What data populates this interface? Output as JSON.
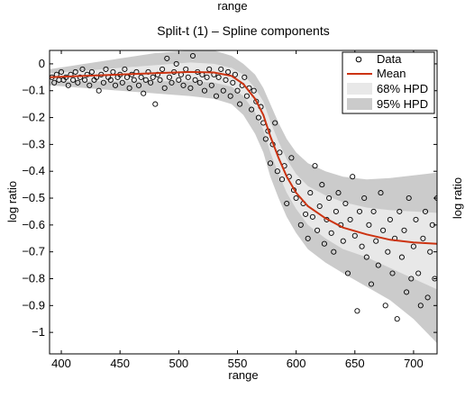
{
  "figure": {
    "top_label": "range"
  },
  "chart_data": {
    "type": "scatter",
    "title": "Split-t (1) – Spline components",
    "xlabel": "range",
    "ylabel": "log ratio",
    "xlim": [
      390,
      720
    ],
    "ylim": [
      -1.08,
      0.05
    ],
    "xticks": [
      400,
      450,
      500,
      550,
      600,
      650,
      700
    ],
    "yticks": [
      0,
      -0.1,
      -0.2,
      -0.3,
      -0.4,
      -0.5,
      -0.6,
      -0.7,
      -0.8,
      -0.9,
      -1
    ],
    "ytick_labels": [
      "0",
      "−0.1",
      "−0.2",
      "−0.3",
      "−0.4",
      "−0.5",
      "−0.6",
      "−0.7",
      "−0.8",
      "−0.9",
      "−1"
    ],
    "legend": {
      "placement": "top-right",
      "entries": [
        "Data",
        "Mean",
        "68% HPD",
        "95% HPD"
      ]
    },
    "colors": {
      "mean": "#cc3311",
      "hpd68": "#e8e8e8",
      "hpd95": "#cbcbcb",
      "points": "#000000"
    },
    "mean_curve": {
      "x": [
        390,
        420,
        450,
        480,
        510,
        530,
        545,
        555,
        565,
        572,
        578,
        585,
        592,
        600,
        610,
        625,
        640,
        660,
        680,
        700,
        720
      ],
      "y": [
        -0.05,
        -0.045,
        -0.04,
        -0.035,
        -0.03,
        -0.032,
        -0.045,
        -0.075,
        -0.13,
        -0.19,
        -0.27,
        -0.35,
        -0.42,
        -0.48,
        -0.53,
        -0.575,
        -0.61,
        -0.635,
        -0.655,
        -0.665,
        -0.67
      ]
    },
    "hpd95": {
      "x": [
        390,
        420,
        450,
        480,
        510,
        530,
        545,
        555,
        565,
        572,
        578,
        585,
        592,
        600,
        610,
        625,
        640,
        660,
        680,
        700,
        720
      ],
      "upper": [
        -0.02,
        0.0,
        0.02,
        0.04,
        0.05,
        0.05,
        0.03,
        0.0,
        -0.04,
        -0.09,
        -0.15,
        -0.22,
        -0.28,
        -0.33,
        -0.37,
        -0.4,
        -0.42,
        -0.43,
        -0.425,
        -0.415,
        -0.405
      ],
      "lower": [
        -0.08,
        -0.09,
        -0.1,
        -0.11,
        -0.12,
        -0.13,
        -0.15,
        -0.19,
        -0.26,
        -0.33,
        -0.42,
        -0.5,
        -0.57,
        -0.63,
        -0.69,
        -0.74,
        -0.78,
        -0.83,
        -0.88,
        -0.95,
        -1.04
      ]
    },
    "hpd68": {
      "x": [
        390,
        420,
        450,
        480,
        510,
        530,
        545,
        555,
        565,
        572,
        578,
        585,
        592,
        600,
        610,
        625,
        640,
        660,
        680,
        700,
        720
      ],
      "upper": [
        -0.035,
        -0.025,
        -0.015,
        -0.005,
        0.005,
        0.0,
        -0.015,
        -0.04,
        -0.09,
        -0.14,
        -0.215,
        -0.29,
        -0.355,
        -0.41,
        -0.455,
        -0.49,
        -0.515,
        -0.535,
        -0.545,
        -0.55,
        -0.555
      ],
      "lower": [
        -0.065,
        -0.065,
        -0.065,
        -0.065,
        -0.065,
        -0.07,
        -0.085,
        -0.12,
        -0.18,
        -0.245,
        -0.33,
        -0.41,
        -0.48,
        -0.54,
        -0.6,
        -0.65,
        -0.69,
        -0.72,
        -0.76,
        -0.8,
        -0.84
      ]
    },
    "points": [
      [
        392,
        -0.05
      ],
      [
        394,
        -0.07
      ],
      [
        396,
        -0.04
      ],
      [
        398,
        -0.06
      ],
      [
        400,
        -0.03
      ],
      [
        402,
        -0.06
      ],
      [
        404,
        -0.05
      ],
      [
        406,
        -0.08
      ],
      [
        408,
        -0.04
      ],
      [
        410,
        -0.06
      ],
      [
        412,
        -0.03
      ],
      [
        414,
        -0.07
      ],
      [
        416,
        -0.05
      ],
      [
        418,
        -0.02
      ],
      [
        420,
        -0.06
      ],
      [
        422,
        -0.04
      ],
      [
        424,
        -0.08
      ],
      [
        426,
        -0.03
      ],
      [
        428,
        -0.06
      ],
      [
        430,
        -0.05
      ],
      [
        432,
        -0.1
      ],
      [
        434,
        -0.04
      ],
      [
        436,
        -0.07
      ],
      [
        438,
        -0.02
      ],
      [
        440,
        -0.05
      ],
      [
        442,
        -0.06
      ],
      [
        444,
        -0.03
      ],
      [
        446,
        -0.08
      ],
      [
        448,
        -0.05
      ],
      [
        450,
        -0.04
      ],
      [
        452,
        -0.07
      ],
      [
        454,
        -0.02
      ],
      [
        456,
        -0.05
      ],
      [
        458,
        -0.09
      ],
      [
        460,
        -0.04
      ],
      [
        462,
        -0.06
      ],
      [
        464,
        -0.03
      ],
      [
        466,
        -0.08
      ],
      [
        468,
        -0.05
      ],
      [
        470,
        -0.11
      ],
      [
        472,
        -0.06
      ],
      [
        474,
        -0.03
      ],
      [
        476,
        -0.07
      ],
      [
        478,
        -0.05
      ],
      [
        480,
        -0.15
      ],
      [
        482,
        -0.04
      ],
      [
        484,
        -0.06
      ],
      [
        486,
        -0.02
      ],
      [
        488,
        -0.09
      ],
      [
        490,
        0.02
      ],
      [
        492,
        -0.05
      ],
      [
        494,
        -0.07
      ],
      [
        496,
        -0.03
      ],
      [
        498,
        0.0
      ],
      [
        500,
        -0.06
      ],
      [
        502,
        -0.04
      ],
      [
        504,
        -0.08
      ],
      [
        506,
        -0.02
      ],
      [
        508,
        -0.05
      ],
      [
        510,
        -0.09
      ],
      [
        512,
        0.03
      ],
      [
        514,
        -0.06
      ],
      [
        516,
        -0.03
      ],
      [
        518,
        -0.07
      ],
      [
        520,
        -0.04
      ],
      [
        522,
        -0.1
      ],
      [
        524,
        -0.05
      ],
      [
        526,
        -0.02
      ],
      [
        528,
        -0.08
      ],
      [
        530,
        -0.04
      ],
      [
        532,
        -0.12
      ],
      [
        534,
        -0.05
      ],
      [
        536,
        -0.02
      ],
      [
        538,
        -0.1
      ],
      [
        540,
        -0.06
      ],
      [
        542,
        -0.03
      ],
      [
        544,
        -0.12
      ],
      [
        546,
        -0.07
      ],
      [
        548,
        -0.04
      ],
      [
        550,
        -0.1
      ],
      [
        552,
        -0.15
      ],
      [
        554,
        -0.08
      ],
      [
        556,
        -0.05
      ],
      [
        558,
        -0.12
      ],
      [
        560,
        -0.09
      ],
      [
        562,
        -0.17
      ],
      [
        564,
        -0.1
      ],
      [
        566,
        -0.14
      ],
      [
        568,
        -0.2
      ],
      [
        570,
        -0.16
      ],
      [
        572,
        -0.22
      ],
      [
        574,
        -0.28
      ],
      [
        576,
        -0.25
      ],
      [
        578,
        -0.37
      ],
      [
        580,
        -0.3
      ],
      [
        582,
        -0.22
      ],
      [
        584,
        -0.4
      ],
      [
        586,
        -0.33
      ],
      [
        588,
        -0.43
      ],
      [
        590,
        -0.38
      ],
      [
        592,
        -0.52
      ],
      [
        594,
        -0.42
      ],
      [
        596,
        -0.35
      ],
      [
        598,
        -0.47
      ],
      [
        600,
        -0.5
      ],
      [
        602,
        -0.44
      ],
      [
        604,
        -0.6
      ],
      [
        606,
        -0.52
      ],
      [
        608,
        -0.56
      ],
      [
        610,
        -0.65
      ],
      [
        612,
        -0.48
      ],
      [
        614,
        -0.57
      ],
      [
        616,
        -0.38
      ],
      [
        618,
        -0.62
      ],
      [
        620,
        -0.53
      ],
      [
        622,
        -0.45
      ],
      [
        624,
        -0.67
      ],
      [
        626,
        -0.58
      ],
      [
        628,
        -0.5
      ],
      [
        630,
        -0.63
      ],
      [
        632,
        -0.7
      ],
      [
        634,
        -0.55
      ],
      [
        636,
        -0.48
      ],
      [
        638,
        -0.6
      ],
      [
        640,
        -0.66
      ],
      [
        642,
        -0.52
      ],
      [
        644,
        -0.78
      ],
      [
        646,
        -0.58
      ],
      [
        648,
        -0.42
      ],
      [
        650,
        -0.64
      ],
      [
        652,
        -0.92
      ],
      [
        654,
        -0.55
      ],
      [
        656,
        -0.68
      ],
      [
        658,
        -0.5
      ],
      [
        660,
        -0.72
      ],
      [
        662,
        -0.6
      ],
      [
        664,
        -0.82
      ],
      [
        666,
        -0.55
      ],
      [
        668,
        -0.66
      ],
      [
        670,
        -0.75
      ],
      [
        672,
        -0.48
      ],
      [
        674,
        -0.62
      ],
      [
        676,
        -0.9
      ],
      [
        678,
        -0.7
      ],
      [
        680,
        -0.58
      ],
      [
        682,
        -0.78
      ],
      [
        684,
        -0.65
      ],
      [
        686,
        -0.95
      ],
      [
        688,
        -0.55
      ],
      [
        690,
        -0.72
      ],
      [
        692,
        -0.62
      ],
      [
        694,
        -0.85
      ],
      [
        696,
        -0.5
      ],
      [
        698,
        -0.8
      ],
      [
        700,
        -0.68
      ],
      [
        702,
        -0.58
      ],
      [
        704,
        -0.78
      ],
      [
        706,
        -0.9
      ],
      [
        708,
        -0.65
      ],
      [
        710,
        -0.55
      ],
      [
        712,
        -0.87
      ],
      [
        714,
        -0.7
      ],
      [
        716,
        -0.6
      ],
      [
        718,
        -0.8
      ],
      [
        720,
        -0.5
      ]
    ]
  }
}
